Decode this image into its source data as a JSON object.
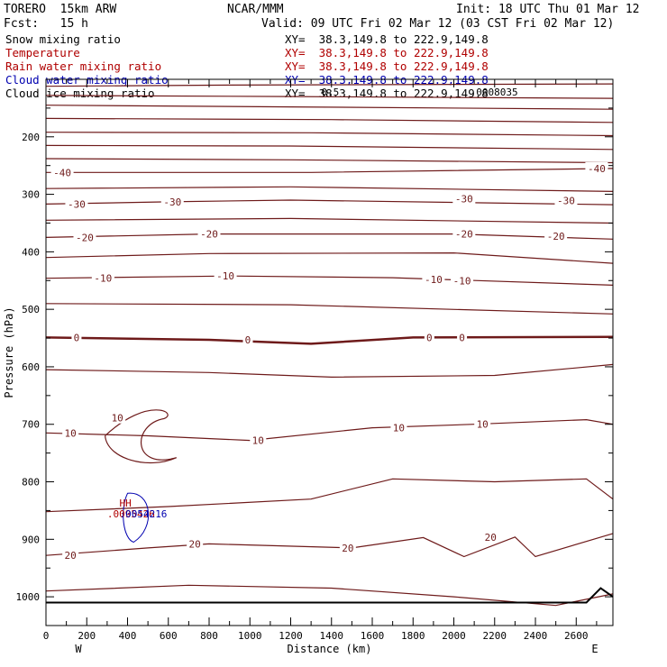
{
  "header": {
    "model": "TORERO  15km ARW",
    "center": "NCAR/MMM",
    "init": "Init: 18 UTC Thu 01 Mar 12",
    "fcst": "Fcst:   15 h",
    "valid": "Valid: 09 UTC Fri 02 Mar 12 (03 CST Fri 02 Mar 12)"
  },
  "legend": [
    {
      "name": "Snow mixing ratio",
      "color": "#000000",
      "xy": "XY=  38.3,149.8 to 222.9,149.8"
    },
    {
      "name": "Temperature",
      "color": "#b00000",
      "xy": "XY=  38.3,149.8 to 222.9,149.8"
    },
    {
      "name": "Rain water mixing ratio",
      "color": "#b00000",
      "xy": "XY=  38.3,149.8 to 222.9,149.8"
    },
    {
      "name": "Cloud water mixing ratio",
      "color": "#0000b0",
      "xy": "XY=  38.3,149.8 to 222.9,149.8"
    },
    {
      "name": "Cloud ice mixing ratio",
      "color": "#000000",
      "xy": "XY=  38.3,149.8 to 222.9,149.8"
    }
  ],
  "chart_data": {
    "type": "line",
    "xlabel": "Distance (km)",
    "ylabel": "Pressure (hPa)",
    "xlim": [
      0,
      2780
    ],
    "ylim": [
      1050,
      100
    ],
    "x_ticks": [
      0,
      200,
      400,
      600,
      800,
      1000,
      1200,
      1400,
      1600,
      1800,
      2000,
      2200,
      2400,
      2600
    ],
    "y_ticks": [
      200,
      300,
      400,
      500,
      600,
      700,
      800,
      900,
      1000
    ],
    "endpoints": {
      "left": "W",
      "right": "E"
    },
    "contour_labels": [
      {
        "text": "-40",
        "x": 80,
        "p": 262
      },
      {
        "text": "-40",
        "x": 2700,
        "p": 255
      },
      {
        "text": "-30",
        "x": 150,
        "p": 317
      },
      {
        "text": "-30",
        "x": 620,
        "p": 313
      },
      {
        "text": "-30",
        "x": 2050,
        "p": 308
      },
      {
        "text": "-30",
        "x": 2550,
        "p": 311
      },
      {
        "text": "-20",
        "x": 190,
        "p": 375
      },
      {
        "text": "-20",
        "x": 800,
        "p": 369
      },
      {
        "text": "-20",
        "x": 2050,
        "p": 369
      },
      {
        "text": "-20",
        "x": 2500,
        "p": 373
      },
      {
        "text": "-10",
        "x": 280,
        "p": 446
      },
      {
        "text": "-10",
        "x": 880,
        "p": 442
      },
      {
        "text": "-10",
        "x": 1900,
        "p": 448
      },
      {
        "text": "-10",
        "x": 2040,
        "p": 450
      },
      {
        "text": "0",
        "x": 150,
        "p": 549
      },
      {
        "text": "0",
        "x": 990,
        "p": 553
      },
      {
        "text": "0",
        "x": 1880,
        "p": 549
      },
      {
        "text": "0",
        "x": 2040,
        "p": 549
      },
      {
        "text": "10",
        "x": 350,
        "p": 689
      },
      {
        "text": "10",
        "x": 120,
        "p": 715
      },
      {
        "text": "10",
        "x": 1040,
        "p": 728
      },
      {
        "text": "10",
        "x": 1730,
        "p": 706
      },
      {
        "text": "10",
        "x": 2140,
        "p": 700
      },
      {
        "text": "20",
        "x": 120,
        "p": 928
      },
      {
        "text": "20",
        "x": 730,
        "p": 908
      },
      {
        "text": "20",
        "x": 1480,
        "p": 915
      },
      {
        "text": "20",
        "x": 2180,
        "p": 896
      }
    ],
    "annotations": [
      {
        "text": "HH",
        "x": 360,
        "p": 843,
        "color": "#b00000"
      },
      {
        "text": ".0095426",
        "x": 300,
        "p": 862,
        "color": "#b00000"
      },
      {
        "text": ".0054216",
        "x": 360,
        "p": 862,
        "color": "#0000b0"
      },
      {
        "text": "0.5",
        "x": 1350,
        "p": 128,
        "color": "#000000"
      },
      {
        "text": ".0008035",
        "x": 2080,
        "p": 128,
        "color": "#000000"
      }
    ]
  }
}
